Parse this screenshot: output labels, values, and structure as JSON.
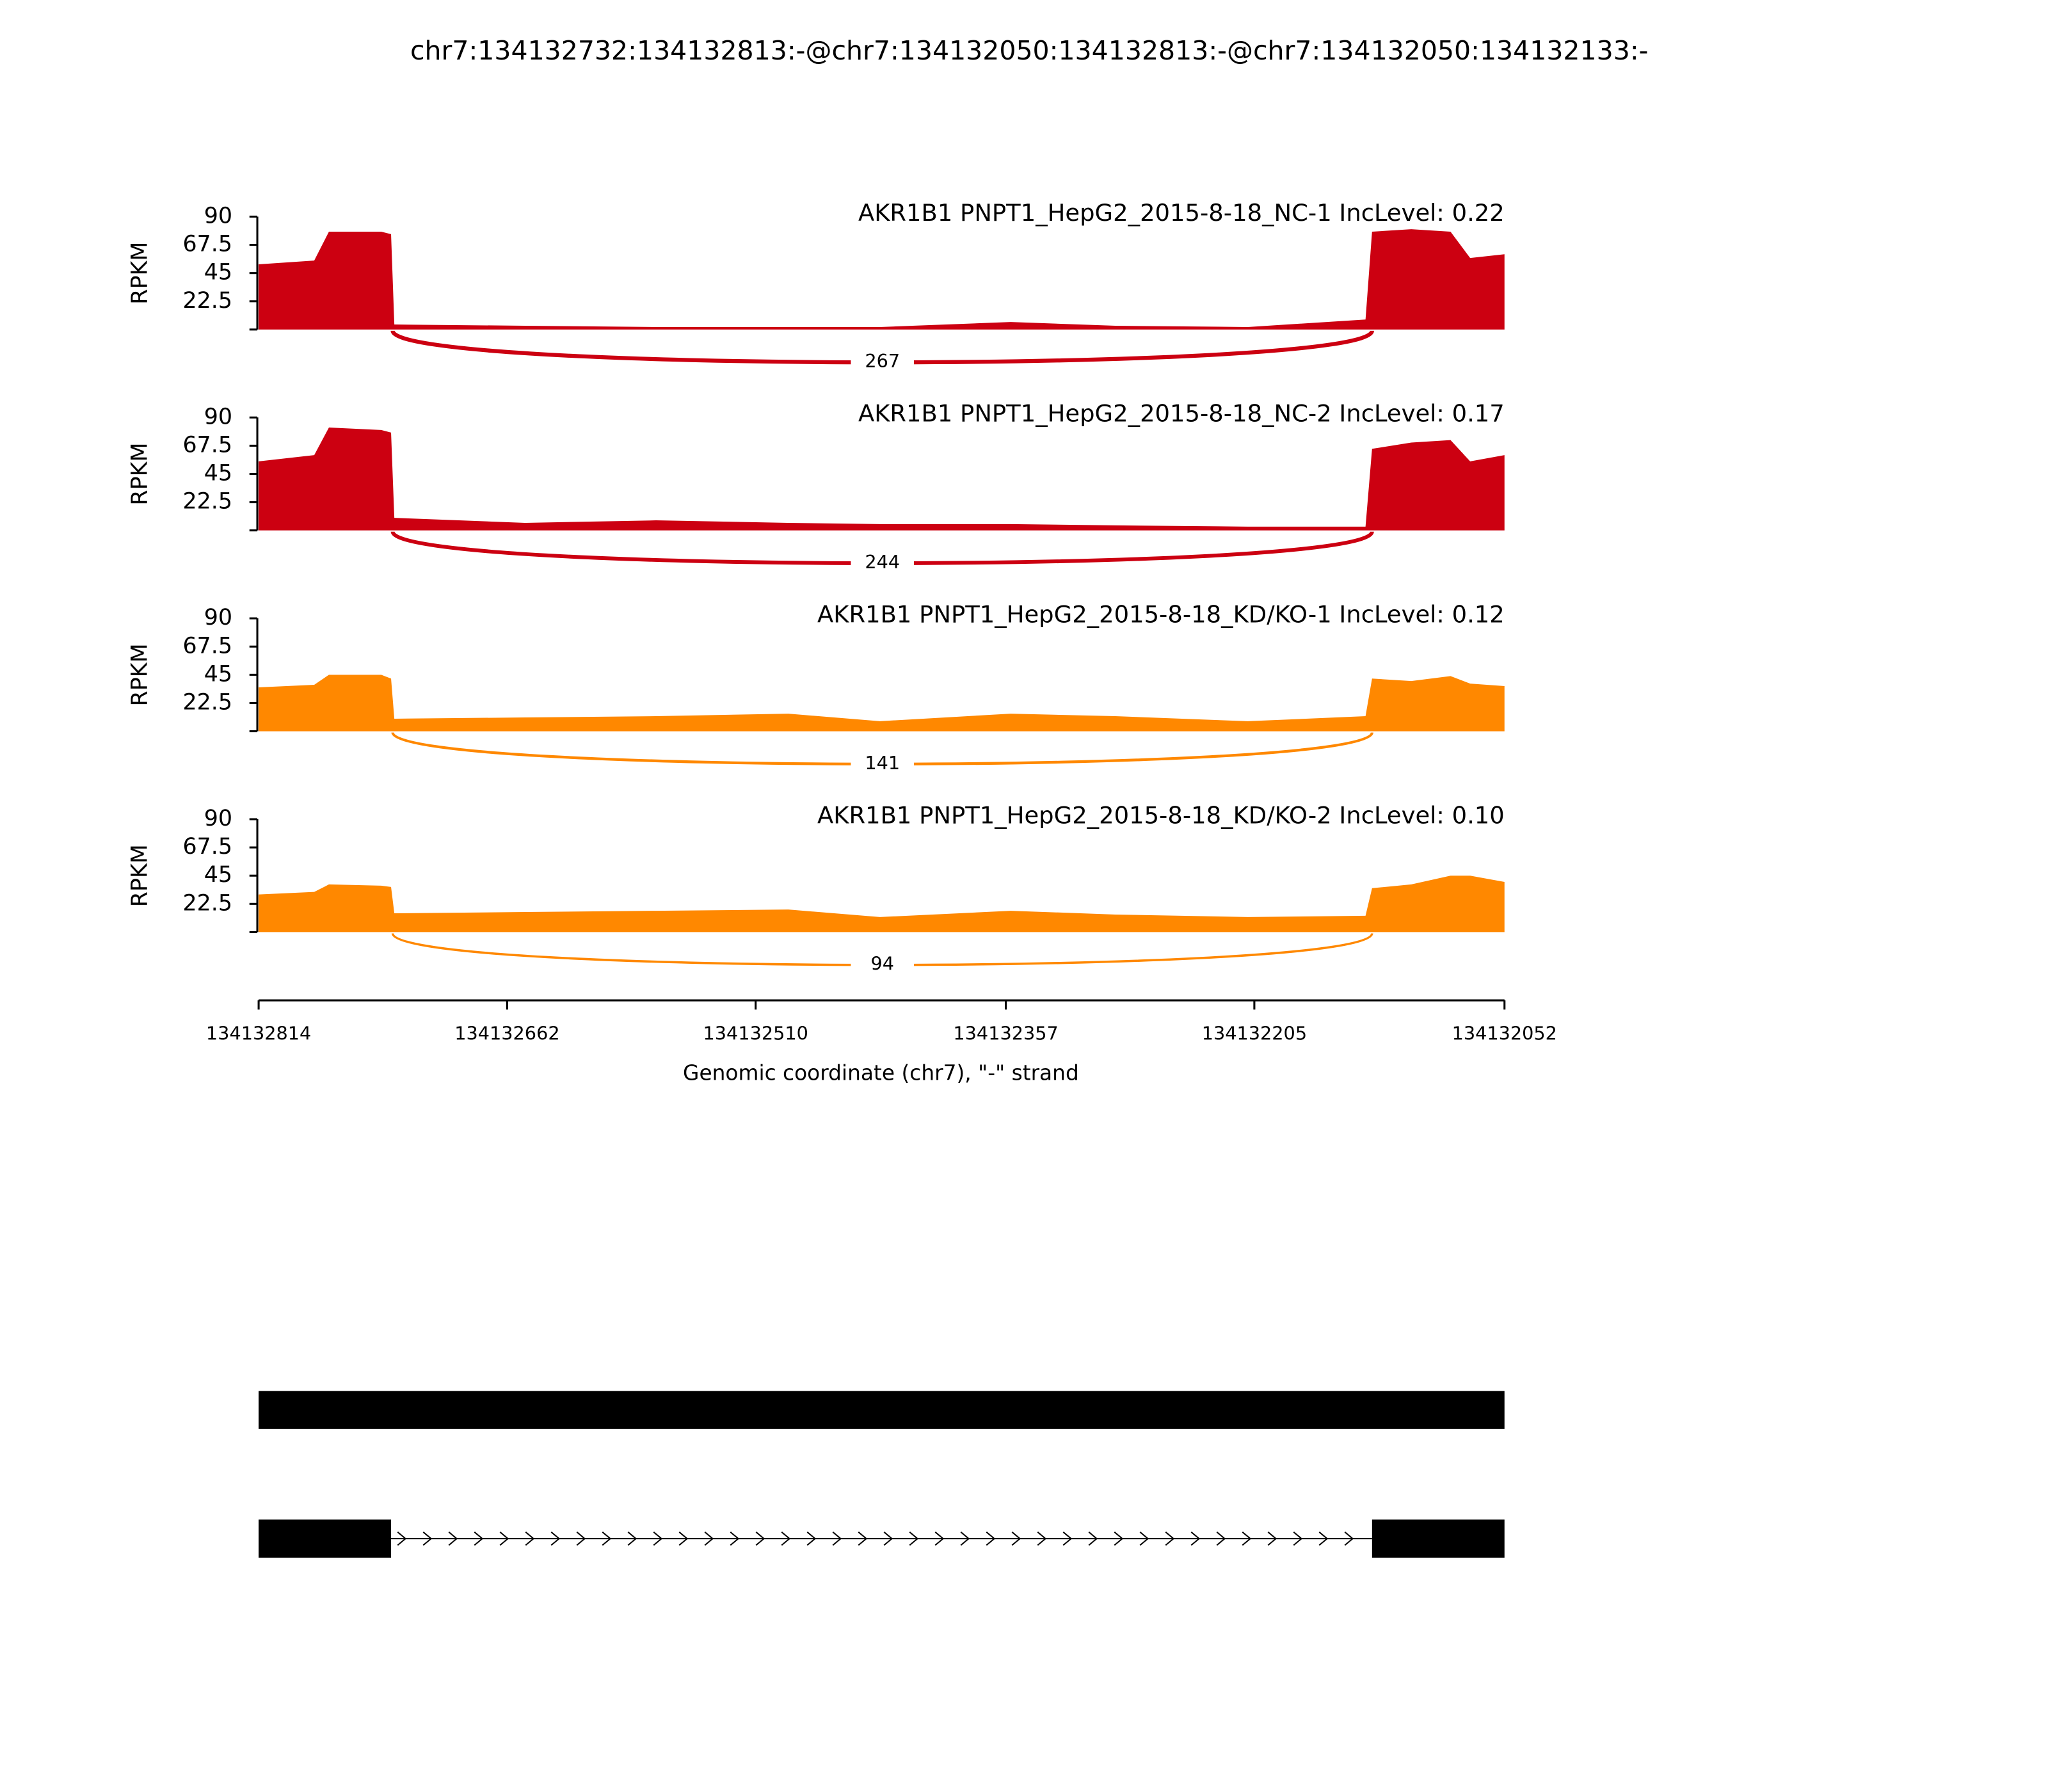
{
  "chart_data": {
    "type": "sashimi",
    "title": "chr7:134132732:134132813:-@chr7:134132050:134132813:-@chr7:134132050:134132133:-",
    "xlabel": "Genomic coordinate (chr7), \"-\" strand",
    "ylabel": "RPKM",
    "xlim": [
      134132814,
      134132052
    ],
    "xticks": [
      134132814,
      134132662,
      134132510,
      134132357,
      134132205,
      134132052
    ],
    "ylim": [
      0,
      90
    ],
    "yticks": [
      22.5,
      45,
      67.5,
      90
    ],
    "x": [
      134132814,
      134132780,
      134132771,
      134132739,
      134132733,
      134132731,
      134132651,
      134132571,
      134132490,
      134132434,
      134132354,
      134132290,
      134132209,
      134132137,
      134132133,
      134132109,
      134132085,
      134132073,
      134132052
    ],
    "junction_span": [
      134132732,
      134132133
    ],
    "tracks": [
      {
        "name": "AKR1B1 PNPT1_HepG2_2015-8-18_NC-1 IncLevel: 0.22",
        "color": "#cc0011",
        "count": 267,
        "values": [
          52,
          55,
          78,
          78,
          76,
          4,
          3,
          2,
          2,
          2,
          6,
          3,
          2,
          8,
          78,
          80,
          78,
          57,
          60
        ]
      },
      {
        "name": "AKR1B1 PNPT1_HepG2_2015-8-18_NC-2 IncLevel: 0.17",
        "color": "#cc0011",
        "count": 244,
        "values": [
          55,
          60,
          82,
          80,
          78,
          10,
          6,
          8,
          6,
          5,
          5,
          4,
          3,
          3,
          65,
          70,
          72,
          55,
          60
        ]
      },
      {
        "name": "AKR1B1 PNPT1_HepG2_2015-8-18_KD/KO-1 IncLevel: 0.12",
        "color": "#ff8800",
        "count": 141,
        "values": [
          35,
          37,
          45,
          45,
          42,
          10,
          11,
          12,
          14,
          8,
          14,
          12,
          8,
          12,
          42,
          40,
          44,
          38,
          36
        ]
      },
      {
        "name": "AKR1B1 PNPT1_HepG2_2015-8-18_KD/KO-2 IncLevel: 0.10",
        "color": "#ff8800",
        "count": 94,
        "values": [
          30,
          32,
          38,
          37,
          36,
          15,
          16,
          17,
          18,
          12,
          17,
          14,
          12,
          13,
          35,
          38,
          45,
          45,
          40
        ]
      }
    ],
    "transcripts": [
      [
        [
          134132814,
          134132052
        ]
      ],
      [
        [
          134132814,
          134132733
        ],
        [
          134132133,
          134132052
        ]
      ]
    ]
  }
}
